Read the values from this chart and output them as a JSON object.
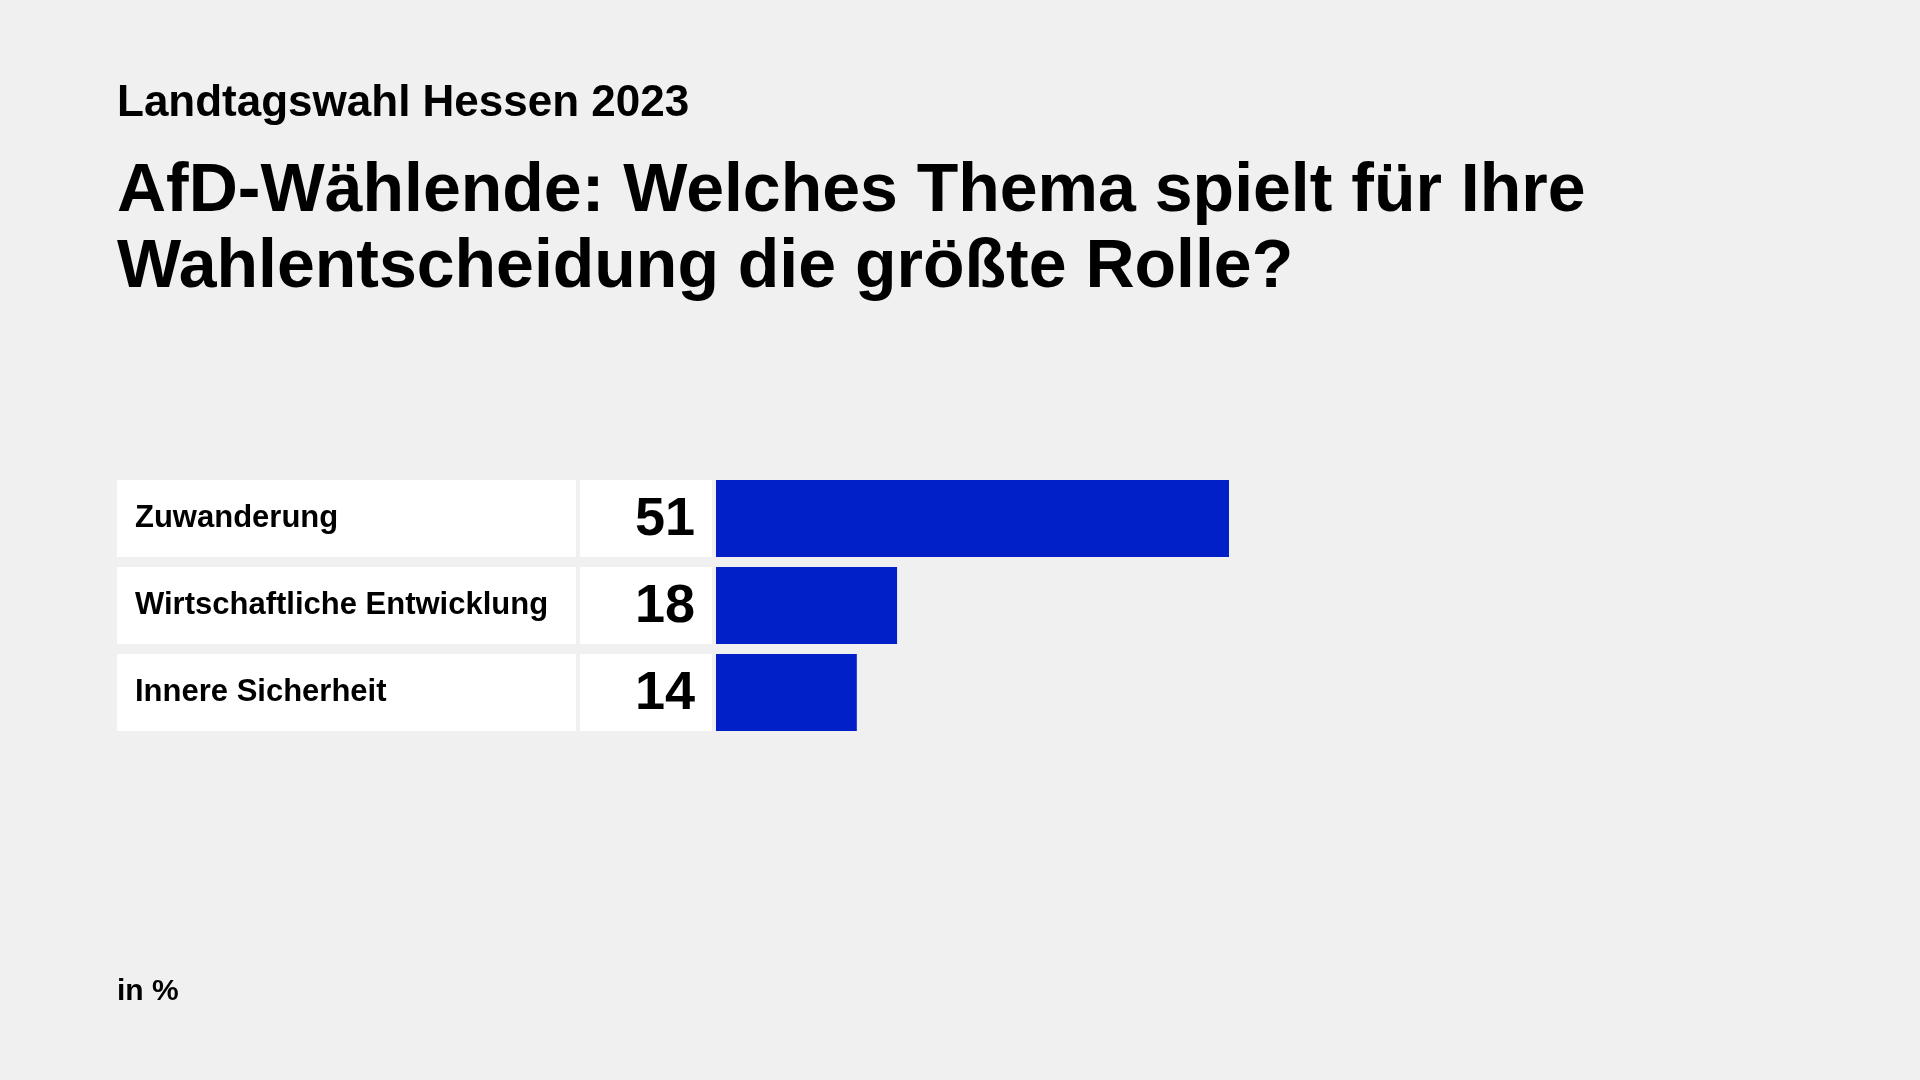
{
  "chart_data": {
    "type": "bar",
    "orientation": "horizontal",
    "subtitle": "Landtagswahl Hessen 2023",
    "title": "AfD-Wählende: Welches Thema spielt für Ihre Wahlentscheidung die größte Rolle?",
    "categories": [
      "Zuwanderung",
      "Wirtschaftliche Entwicklung",
      "Innere Sicherheit"
    ],
    "values": [
      51,
      18,
      14
    ],
    "color": "#0120c8",
    "data_labels": true,
    "annotations": [
      "in %"
    ]
  }
}
